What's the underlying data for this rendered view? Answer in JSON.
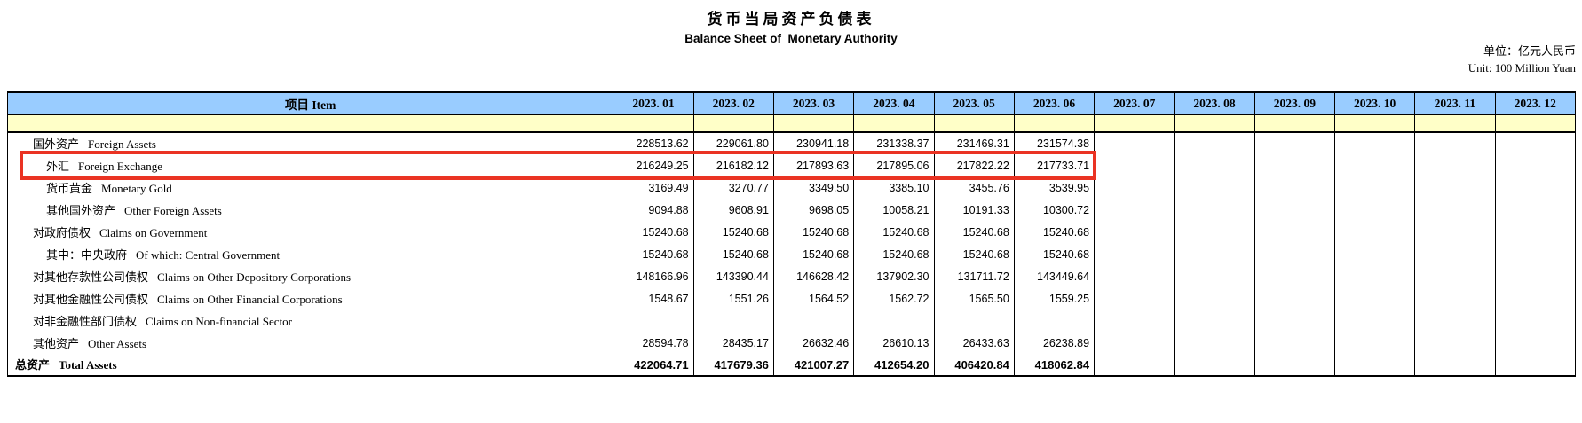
{
  "title": {
    "zh": "货币当局资产负债表",
    "en": "Balance Sheet of  Monetary Authority"
  },
  "unit": {
    "zh": "单位：亿元人民币",
    "en": "Unit: 100 Million Yuan"
  },
  "colors": {
    "header_bg": "#99CCFF",
    "band_bg": "#FFFFC8",
    "highlight_border": "#EA3323"
  },
  "table": {
    "item_header": "项目 Item",
    "month_headers": [
      "2023. 01",
      "2023. 02",
      "2023. 03",
      "2023. 04",
      "2023. 05",
      "2023. 06",
      "2023. 07",
      "2023. 08",
      "2023. 09",
      "2023. 10",
      "2023. 11",
      "2023. 12"
    ],
    "rows": [
      {
        "zh": "国外资产",
        "en": "Foreign Assets",
        "indent": 1,
        "bold": false,
        "highlight": false,
        "values": [
          "228513.62",
          "229061.80",
          "230941.18",
          "231338.37",
          "231469.31",
          "231574.38"
        ]
      },
      {
        "zh": "外汇",
        "en": "Foreign Exchange",
        "indent": 2,
        "bold": false,
        "highlight": true,
        "values": [
          "216249.25",
          "216182.12",
          "217893.63",
          "217895.06",
          "217822.22",
          "217733.71"
        ]
      },
      {
        "zh": "货币黄金",
        "en": "Monetary Gold",
        "indent": 2,
        "bold": false,
        "highlight": false,
        "values": [
          "3169.49",
          "3270.77",
          "3349.50",
          "3385.10",
          "3455.76",
          "3539.95"
        ]
      },
      {
        "zh": "其他国外资产",
        "en": "Other Foreign Assets",
        "indent": 2,
        "bold": false,
        "highlight": false,
        "values": [
          "9094.88",
          "9608.91",
          "9698.05",
          "10058.21",
          "10191.33",
          "10300.72"
        ]
      },
      {
        "zh": "对政府债权",
        "en": "Claims on Government",
        "indent": 1,
        "bold": false,
        "highlight": false,
        "values": [
          "15240.68",
          "15240.68",
          "15240.68",
          "15240.68",
          "15240.68",
          "15240.68"
        ]
      },
      {
        "zh": "其中：中央政府",
        "en": "Of which: Central Government",
        "indent": 2,
        "bold": false,
        "highlight": false,
        "values": [
          "15240.68",
          "15240.68",
          "15240.68",
          "15240.68",
          "15240.68",
          "15240.68"
        ]
      },
      {
        "zh": "对其他存款性公司债权",
        "en": "Claims on Other Depository Corporations",
        "indent": 1,
        "bold": false,
        "highlight": false,
        "values": [
          "148166.96",
          "143390.44",
          "146628.42",
          "137902.30",
          "131711.72",
          "143449.64"
        ]
      },
      {
        "zh": "对其他金融性公司债权",
        "en": "Claims on Other Financial Corporations",
        "indent": 1,
        "bold": false,
        "highlight": false,
        "values": [
          "1548.67",
          "1551.26",
          "1564.52",
          "1562.72",
          "1565.50",
          "1559.25"
        ]
      },
      {
        "zh": "对非金融性部门债权",
        "en": "Claims on Non-financial Sector",
        "indent": 1,
        "bold": false,
        "highlight": false,
        "values": []
      },
      {
        "zh": "其他资产",
        "en": "Other Assets",
        "indent": 1,
        "bold": false,
        "highlight": false,
        "values": [
          "28594.78",
          "28435.17",
          "26632.46",
          "26610.13",
          "26433.63",
          "26238.89"
        ]
      },
      {
        "zh": "总资产",
        "en": "Total Assets",
        "indent": 0,
        "bold": true,
        "highlight": false,
        "values": [
          "422064.71",
          "417679.36",
          "421007.27",
          "412654.20",
          "406420.84",
          "418062.84"
        ]
      }
    ]
  }
}
